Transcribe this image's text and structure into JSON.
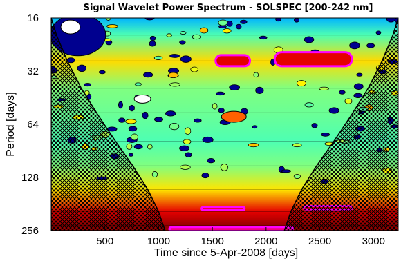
{
  "chart_data": {
    "type": "heatmap",
    "title": "Signal Wavelet Power Spectrum - SOLSPEC [200-242 nm]",
    "xlabel": "Time since 5-Apr-2008 [days]",
    "ylabel": "Period [days]",
    "xlim": [
      0,
      3230
    ],
    "ylim": [
      16,
      256
    ],
    "y_scale": "log2",
    "y_reversed": true,
    "x_ticks": [
      500,
      1000,
      1500,
      2000,
      2500,
      3000
    ],
    "y_ticks": [
      16,
      32,
      64,
      128,
      256
    ],
    "x_tick_labels": [
      "500",
      "1000",
      "1500",
      "2000",
      "2500",
      "3000"
    ],
    "y_tick_labels": [
      "16",
      "32",
      "64",
      "128",
      "256"
    ],
    "colormap": "jet",
    "colors": {
      "low_power": "#00008f",
      "mid_power": "#80ff80",
      "high_power": "#cc0000",
      "significance_contour": "#ff00ff",
      "cone_of_influence_hatch": "#000000"
    },
    "cone_of_influence": {
      "left": [
        [
          0,
          16
        ],
        [
          50,
          20
        ],
        [
          150,
          28
        ],
        [
          280,
          40
        ],
        [
          430,
          56
        ],
        [
          600,
          80
        ],
        [
          760,
          110
        ],
        [
          900,
          150
        ],
        [
          1000,
          200
        ],
        [
          1060,
          256
        ]
      ],
      "right": [
        [
          3230,
          16
        ],
        [
          3180,
          20
        ],
        [
          3080,
          28
        ],
        [
          2950,
          40
        ],
        [
          2800,
          56
        ],
        [
          2630,
          80
        ],
        [
          2470,
          110
        ],
        [
          2330,
          150
        ],
        [
          2230,
          200
        ],
        [
          2170,
          256
        ]
      ]
    },
    "significant_regions": [
      {
        "x_range": [
          1530,
          1850
        ],
        "period_range": [
          26,
          30
        ]
      },
      {
        "x_range": [
          2080,
          2800
        ],
        "period_range": [
          25,
          30
        ]
      },
      {
        "x_range": [
          1400,
          1800
        ],
        "period_range": [
          188,
          196
        ]
      },
      {
        "x_range": [
          2350,
          2800
        ],
        "period_range": [
          186,
          194
        ]
      },
      {
        "x_range": [
          1100,
          2250
        ],
        "period_range": [
          245,
          256
        ]
      }
    ],
    "power_bands": [
      {
        "period": 240,
        "level": 0.98
      },
      {
        "period": 200,
        "level": 0.9
      },
      {
        "period": 150,
        "level": 0.65
      },
      {
        "period": 110,
        "level": 0.5
      },
      {
        "period": 80,
        "level": 0.45
      },
      {
        "period": 55,
        "level": 0.48
      },
      {
        "period": 40,
        "level": 0.5
      },
      {
        "period": 28,
        "level": 0.66
      },
      {
        "period": 20,
        "level": 0.45
      },
      {
        "period": 16,
        "level": 0.3
      }
    ],
    "grid": false
  }
}
